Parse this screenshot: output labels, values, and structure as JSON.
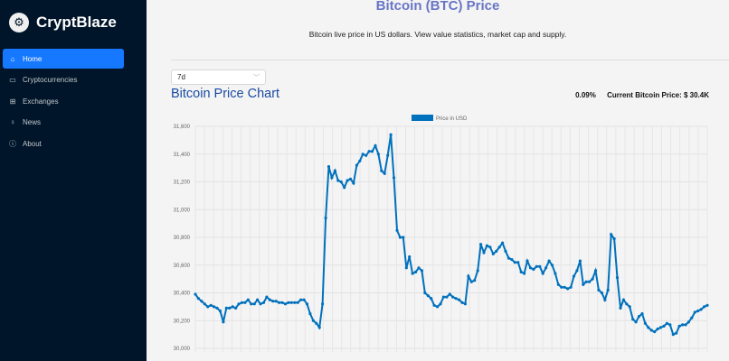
{
  "app": {
    "name": "CryptBlaze",
    "logo_icon": "logo-icon"
  },
  "sidebar": {
    "items": [
      {
        "label": "Home",
        "icon": "home-icon",
        "active": true
      },
      {
        "label": "Cryptocurrencies",
        "icon": "money-icon",
        "active": false
      },
      {
        "label": "Exchanges",
        "icon": "exchange-icon",
        "active": false
      },
      {
        "label": "News",
        "icon": "bulb-icon",
        "active": false
      },
      {
        "label": "About",
        "icon": "info-icon",
        "active": false
      }
    ]
  },
  "header": {
    "title": "Bitcoin (BTC) Price",
    "subtitle": "Bitcoin live price in US dollars. View value statistics, market cap and supply."
  },
  "controls": {
    "timeperiod": "7d"
  },
  "chart_section": {
    "title": "Bitcoin Price Chart",
    "change": "0.09%",
    "current_price": "Current Bitcoin Price: $ 30.4K"
  },
  "colors": {
    "accent": "#1677ff",
    "line": "#0071bd",
    "title": "#6875c5",
    "sidebar": "#001529"
  },
  "chart_data": {
    "type": "line",
    "title": "",
    "xlabel": "",
    "ylabel": "",
    "ylim": [
      30000,
      31600
    ],
    "yticks": [
      "31,600",
      "31,400",
      "31,200",
      "31,000",
      "30,800",
      "30,600",
      "30,400",
      "30,200",
      "30,000"
    ],
    "legend": "Price in USD",
    "series": [
      {
        "name": "Price in USD",
        "values": [
          30390,
          30360,
          30340,
          30320,
          30300,
          30310,
          30300,
          30290,
          30270,
          30190,
          30290,
          30290,
          30300,
          30290,
          30320,
          30330,
          30330,
          30350,
          30320,
          30320,
          30350,
          30320,
          30330,
          30370,
          30350,
          30340,
          30340,
          30330,
          30330,
          30320,
          30330,
          30330,
          30330,
          30330,
          30350,
          30350,
          30320,
          30250,
          30200,
          30180,
          30150,
          30320,
          30940,
          31310,
          31230,
          31280,
          31210,
          31200,
          31160,
          31210,
          31220,
          31190,
          31320,
          31350,
          31400,
          31390,
          31420,
          31420,
          31460,
          31400,
          31280,
          31260,
          31390,
          31540,
          31230,
          30850,
          30800,
          30800,
          30580,
          30660,
          30540,
          30550,
          30580,
          30560,
          30400,
          30380,
          30360,
          30310,
          30300,
          30320,
          30370,
          30370,
          30390,
          30370,
          30360,
          30350,
          30330,
          30320,
          30520,
          30480,
          30490,
          30560,
          30750,
          30690,
          30740,
          30730,
          30680,
          30700,
          30730,
          30760,
          30700,
          30650,
          30640,
          30620,
          30620,
          30550,
          30540,
          30630,
          30580,
          30570,
          30590,
          30590,
          30540,
          30580,
          30630,
          30600,
          30540,
          30460,
          30440,
          30440,
          30430,
          30440,
          30520,
          30560,
          30630,
          30460,
          30480,
          30480,
          30500,
          30560,
          30420,
          30400,
          30350,
          30420,
          30820,
          30790,
          30510,
          30290,
          30350,
          30320,
          30300,
          30210,
          30190,
          30230,
          30250,
          30180,
          30150,
          30130,
          30120,
          30140,
          30150,
          30160,
          30180,
          30170,
          30100,
          30110,
          30160,
          30170,
          30170,
          30190,
          30220,
          30260,
          30270,
          30280,
          30300,
          30310
        ]
      }
    ]
  }
}
